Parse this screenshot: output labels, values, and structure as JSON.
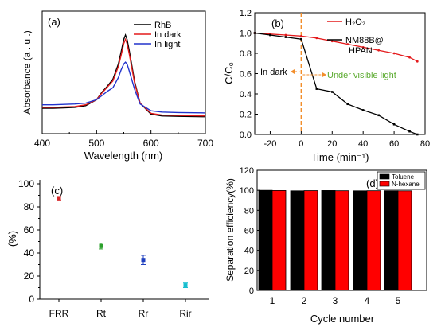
{
  "chart_data": [
    {
      "panel": "(a)",
      "type": "line",
      "xlabel": "Wavelength (nm)",
      "ylabel": "Absorbance (a . u .)",
      "xlim": [
        400,
        700
      ],
      "xticks": [
        "400",
        "500",
        "600",
        "700"
      ],
      "legend_position": "top-right",
      "series": [
        {
          "name": "RhB",
          "color": "#000000",
          "x": [
            400,
            420,
            440,
            460,
            480,
            500,
            510,
            520,
            530,
            540,
            545,
            550,
            553,
            556,
            560,
            570,
            580,
            600,
            620,
            650,
            700
          ],
          "y": [
            0.14,
            0.14,
            0.145,
            0.15,
            0.17,
            0.24,
            0.33,
            0.4,
            0.48,
            0.66,
            0.8,
            0.95,
            1.0,
            0.95,
            0.82,
            0.45,
            0.2,
            0.07,
            0.05,
            0.045,
            0.04
          ]
        },
        {
          "name": "In dark",
          "color": "#e41a1c",
          "x": [
            400,
            420,
            440,
            460,
            480,
            500,
            510,
            520,
            530,
            540,
            545,
            550,
            553,
            556,
            560,
            570,
            580,
            600,
            620,
            650,
            700
          ],
          "y": [
            0.15,
            0.15,
            0.155,
            0.16,
            0.18,
            0.24,
            0.32,
            0.39,
            0.46,
            0.63,
            0.76,
            0.9,
            0.95,
            0.9,
            0.78,
            0.43,
            0.2,
            0.08,
            0.06,
            0.055,
            0.05
          ]
        },
        {
          "name": "In light",
          "color": "#2233cc",
          "x": [
            400,
            420,
            440,
            460,
            480,
            500,
            510,
            520,
            530,
            540,
            545,
            550,
            553,
            556,
            560,
            570,
            580,
            600,
            620,
            650,
            700
          ],
          "y": [
            0.18,
            0.18,
            0.185,
            0.19,
            0.2,
            0.24,
            0.29,
            0.34,
            0.38,
            0.5,
            0.59,
            0.66,
            0.68,
            0.66,
            0.58,
            0.36,
            0.19,
            0.11,
            0.095,
            0.09,
            0.085
          ]
        }
      ]
    },
    {
      "panel": "(b)",
      "type": "line",
      "xlabel": "Time (min⁻¹)",
      "ylabel": "C/C₀",
      "xlim": [
        -30,
        80
      ],
      "ylim": [
        0,
        1.2
      ],
      "xticks": [
        "-20",
        "0",
        "20",
        "40",
        "60",
        "80"
      ],
      "yticks": [
        "0.0",
        "0.2",
        "0.4",
        "0.6",
        "0.8",
        "1.0",
        "1.2"
      ],
      "annotations": [
        "In dark",
        "Under visible light"
      ],
      "series": [
        {
          "name": "H₂O₂",
          "color": "#e41a1c",
          "x": [
            -30,
            -20,
            -10,
            0,
            10,
            20,
            30,
            40,
            50,
            60,
            70,
            75
          ],
          "y": [
            1.0,
            0.99,
            0.98,
            0.97,
            0.95,
            0.92,
            0.89,
            0.86,
            0.83,
            0.8,
            0.76,
            0.72
          ]
        },
        {
          "name": "NM88B@HPAN",
          "color": "#000000",
          "x": [
            -30,
            -20,
            -10,
            0,
            10,
            20,
            30,
            40,
            50,
            60,
            70,
            75
          ],
          "y": [
            1.0,
            0.98,
            0.96,
            0.94,
            0.45,
            0.42,
            0.3,
            0.24,
            0.19,
            0.1,
            0.03,
            0.0
          ]
        }
      ]
    },
    {
      "panel": "(c)",
      "type": "scatter",
      "ylabel": "(%)",
      "ylim": [
        0,
        100
      ],
      "yticks": [
        "0",
        "20",
        "40",
        "60",
        "80",
        "100"
      ],
      "categories": [
        "FRR",
        "Rt",
        "Rr",
        "Rir"
      ],
      "values": [
        87.5,
        46,
        34,
        12
      ],
      "errors": [
        1.5,
        2.5,
        4,
        2
      ],
      "colors": [
        "#d62728",
        "#2ca02c",
        "#1f3fbf",
        "#17becf"
      ]
    },
    {
      "panel": "(d)",
      "type": "bar",
      "xlabel": "Cycle number",
      "ylabel": "Separation efficiency(%)",
      "ylim": [
        0,
        120
      ],
      "yticks": [
        "0",
        "20",
        "40",
        "60",
        "80",
        "100",
        "120"
      ],
      "categories": [
        "1",
        "2",
        "3",
        "4",
        "5"
      ],
      "legend_position": "top-right",
      "series": [
        {
          "name": "Toluene",
          "color": "#000000",
          "values": [
            100,
            99.5,
            99.8,
            99.5,
            99.6
          ]
        },
        {
          "name": "N-hexane",
          "color": "#ff0000",
          "values": [
            99.8,
            99.7,
            99.6,
            99.6,
            99.5
          ]
        }
      ]
    }
  ]
}
